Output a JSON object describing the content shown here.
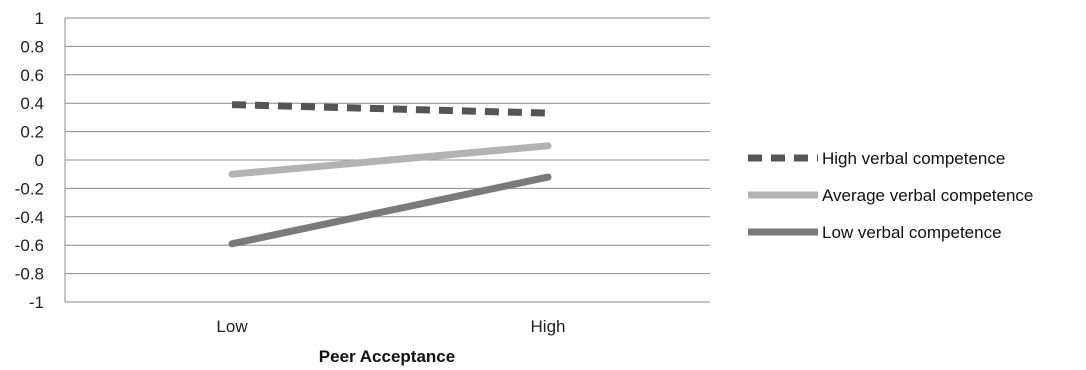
{
  "chart_data": {
    "type": "line",
    "categories": [
      "Low",
      "High"
    ],
    "xlabel": "Peer Acceptance",
    "ylabel": "",
    "title": "",
    "ylim": [
      -1,
      1
    ],
    "yticks": [
      "1",
      "0.8",
      "0.6",
      "0.4",
      "0.2",
      "0",
      "-0.2",
      "-0.4",
      "-0.6",
      "-0.8",
      "-1"
    ],
    "grid": true,
    "legend_position": "right",
    "series": [
      {
        "name": "High verbal competence",
        "values": [
          0.39,
          0.33
        ],
        "color": "#555555",
        "dash": "dashed"
      },
      {
        "name": "Average verbal competence",
        "values": [
          -0.1,
          0.1
        ],
        "color": "#b3b3b3",
        "dash": "solid"
      },
      {
        "name": "Low verbal competence",
        "values": [
          -0.59,
          -0.12
        ],
        "color": "#7a7a7a",
        "dash": "solid"
      }
    ]
  }
}
